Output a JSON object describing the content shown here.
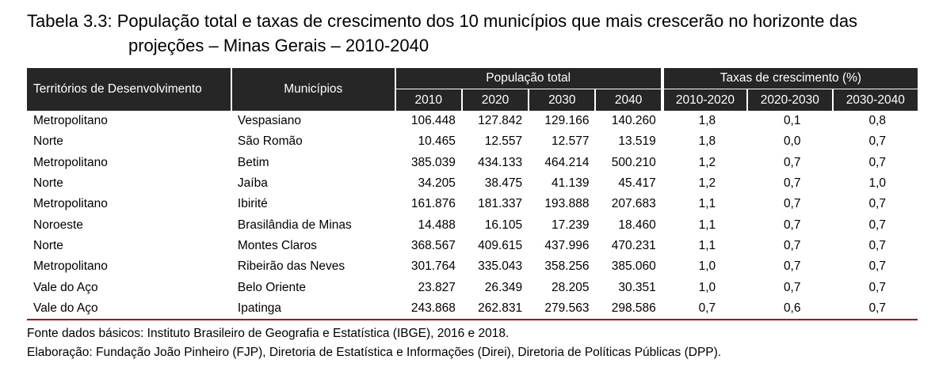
{
  "title": {
    "line1": "Tabela 3.3: População total e taxas de crescimento dos 10 municípios que mais crescerão no horizonte das",
    "line2": "projeções – Minas Gerais – 2010-2040"
  },
  "table": {
    "headers": {
      "territorios": "Territórios de Desenvolvimento",
      "municipios": "Municípios",
      "populacao_group": "População total",
      "taxas_group": "Taxas de crescimento (%)",
      "pop_years": [
        "2010",
        "2020",
        "2030",
        "2040"
      ],
      "rate_periods": [
        "2010-2020",
        "2020-2030",
        "2030-2040"
      ]
    },
    "rows": [
      {
        "territorio": "Metropolitano",
        "municipio": "Vespasiano",
        "pop": [
          "106.448",
          "127.842",
          "129.166",
          "140.260"
        ],
        "rates": [
          "1,8",
          "0,1",
          "0,8"
        ]
      },
      {
        "territorio": "Norte",
        "municipio": "São Romão",
        "pop": [
          "10.465",
          "12.557",
          "12.577",
          "13.519"
        ],
        "rates": [
          "1,8",
          "0,0",
          "0,7"
        ]
      },
      {
        "territorio": "Metropolitano",
        "municipio": "Betim",
        "pop": [
          "385.039",
          "434.133",
          "464.214",
          "500.210"
        ],
        "rates": [
          "1,2",
          "0,7",
          "0,7"
        ]
      },
      {
        "territorio": "Norte",
        "municipio": "Jaíba",
        "pop": [
          "34.205",
          "38.475",
          "41.139",
          "45.417"
        ],
        "rates": [
          "1,2",
          "0,7",
          "1,0"
        ]
      },
      {
        "territorio": "Metropolitano",
        "municipio": "Ibirité",
        "pop": [
          "161.876",
          "181.337",
          "193.888",
          "207.683"
        ],
        "rates": [
          "1,1",
          "0,7",
          "0,7"
        ]
      },
      {
        "territorio": "Noroeste",
        "municipio": "Brasilândia de Minas",
        "pop": [
          "14.488",
          "16.105",
          "17.239",
          "18.460"
        ],
        "rates": [
          "1,1",
          "0,7",
          "0,7"
        ]
      },
      {
        "territorio": "Norte",
        "municipio": "Montes Claros",
        "pop": [
          "368.567",
          "409.615",
          "437.996",
          "470.231"
        ],
        "rates": [
          "1,1",
          "0,7",
          "0,7"
        ]
      },
      {
        "territorio": "Metropolitano",
        "municipio": "Ribeirão das Neves",
        "pop": [
          "301.764",
          "335.043",
          "358.256",
          "385.060"
        ],
        "rates": [
          "1,0",
          "0,7",
          "0,7"
        ]
      },
      {
        "territorio": "Vale do Aço",
        "municipio": "Belo Oriente",
        "pop": [
          "23.827",
          "26.349",
          "28.205",
          "30.351"
        ],
        "rates": [
          "1,0",
          "0,7",
          "0,7"
        ]
      },
      {
        "territorio": "Vale do Aço",
        "municipio": "Ipatinga",
        "pop": [
          "243.868",
          "262.831",
          "279.563",
          "298.586"
        ],
        "rates": [
          "0,7",
          "0,6",
          "0,7"
        ]
      }
    ]
  },
  "notes": {
    "fonte": "Fonte dados básicos: Instituto Brasileiro de Geografia e Estatística (IBGE), 2016 e 2018.",
    "elaboracao": "Elaboração: Fundação João Pinheiro (FJP), Diretoria de Estatística e Informações (Direi), Diretoria de Políticas Públicas (DPP)."
  },
  "colors": {
    "header_bg": "#262626",
    "header_text": "#ffffff",
    "bottom_rule": "#9b1b1f"
  }
}
